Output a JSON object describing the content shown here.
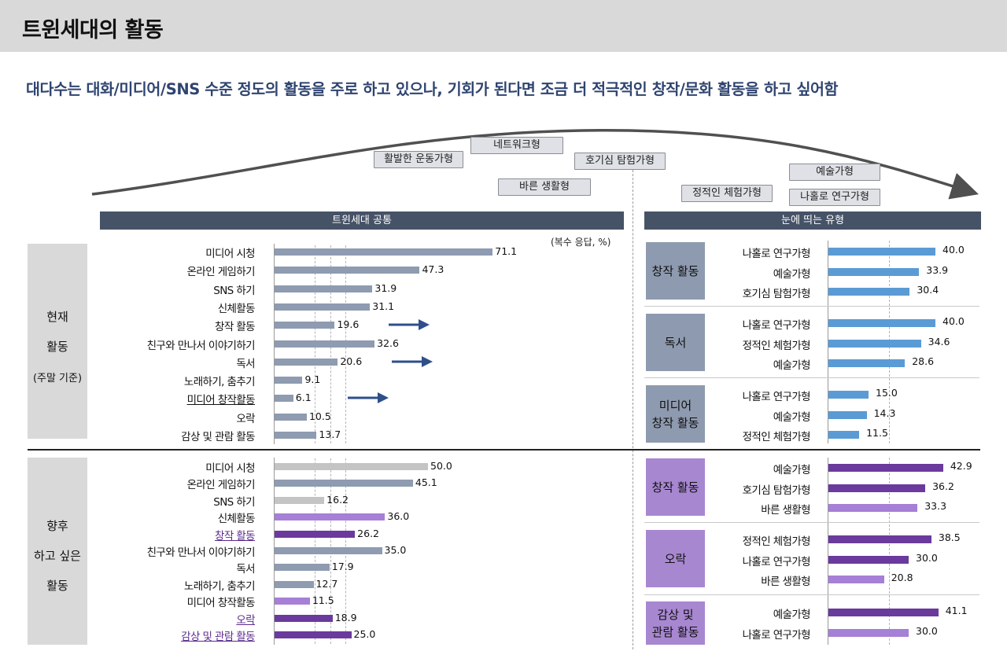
{
  "page": {
    "title": "트윈세대의 활동",
    "subtitle": "대다수는 대화/미디어/SNS 수준 정도의 활동을 주로 하고 있으나, 기회가 된다면 조금 더 적극적인 창작/문화 활동을 하고 싶어함"
  },
  "colors": {
    "current_bar": "#8e9bb0",
    "future_gray": "#c4c4c4",
    "future_purple_light": "#a67fd6",
    "future_purple_dark": "#6b3a9d",
    "right_blue": "#5b9bd5",
    "header_bg": "#465266"
  },
  "timeline": {
    "tags": [
      "활발한 운동가형",
      "네트워크형",
      "바른 생활형",
      "호기심 탐험가형",
      "정적인 체험가형",
      "예술가형",
      "나홀로 연구가형"
    ]
  },
  "left_section": {
    "header": "트윈세대 공통",
    "unit_note": "(복수 응답, %)"
  },
  "right_section": {
    "header": "눈에 띄는 유형"
  },
  "row_panels": {
    "current": {
      "line1": "현재",
      "line2": "활동",
      "line3": "(주말 기준)"
    },
    "future": {
      "line1": "향후",
      "line2": "하고 싶은",
      "line3": "활동"
    }
  },
  "chart_data": [
    {
      "type": "bar",
      "orientation": "horizontal",
      "group": "현재 활동 (주말 기준)",
      "categories": [
        "미디어 시청",
        "온라인 게임하기",
        "SNS 하기",
        "신체활동",
        "창작 활동",
        "친구와 만나서 이야기하기",
        "독서",
        "노래하기, 춤추기",
        "미디어 창작활동",
        "오락",
        "감상 및 관람 활동"
      ],
      "values": [
        71.1,
        47.3,
        31.9,
        31.1,
        19.6,
        32.6,
        20.6,
        9.1,
        6.1,
        10.5,
        13.7
      ],
      "value_labels": [
        "71.1",
        "47.3",
        "31.9",
        "31.1",
        "19.6",
        "32.6",
        "20.6",
        "9.1",
        "6.1",
        "10.5",
        "13.7"
      ],
      "arrows_on": [
        "창작 활동",
        "독서",
        "미디어 창작활동"
      ],
      "underlined": [
        "미디어 창작활동"
      ]
    },
    {
      "type": "bar",
      "orientation": "horizontal",
      "group": "향후 하고 싶은 활동",
      "categories": [
        "미디어 시청",
        "온라인 게임하기",
        "SNS 하기",
        "신체활동",
        "창작 활동",
        "친구와 만나서 이야기하기",
        "독서",
        "노래하기, 춤추기",
        "미디어 창작활동",
        "오락",
        "감상 및 관람 활동"
      ],
      "values": [
        50.0,
        45.1,
        16.2,
        36.0,
        26.2,
        35.0,
        17.9,
        12.7,
        11.5,
        18.9,
        25.0
      ],
      "value_labels": [
        "50.0",
        "45.1",
        "16.2",
        "36.0",
        "26.2",
        "35.0",
        "17.9",
        "12.7",
        "11.5",
        "18.9",
        "25.0"
      ],
      "bar_styles": [
        "future_gray",
        "current_bar",
        "future_gray",
        "future_purple_light",
        "future_purple_dark",
        "current_bar",
        "current_bar",
        "current_bar",
        "future_purple_light",
        "future_purple_dark",
        "future_purple_dark"
      ],
      "highlighted_labels": [
        "창작 활동",
        "오락",
        "감상 및 관람 활동"
      ]
    },
    {
      "type": "bar",
      "orientation": "horizontal",
      "group": "눈에 띄는 유형 - 현재",
      "panels": [
        {
          "title": "창작 활동",
          "categories": [
            "나홀로 연구가형",
            "예술가형",
            "호기심 탐험가형"
          ],
          "values": [
            40.0,
            33.9,
            30.4
          ],
          "value_labels": [
            "40.0",
            "33.9",
            "30.4"
          ]
        },
        {
          "title": "독서",
          "categories": [
            "나홀로 연구가형",
            "정적인 체험가형",
            "예술가형"
          ],
          "values": [
            40.0,
            34.6,
            28.6
          ],
          "value_labels": [
            "40.0",
            "34.6",
            "28.6"
          ]
        },
        {
          "title": "미디어 창작 활동",
          "categories": [
            "나홀로 연구가형",
            "예술가형",
            "정적인 체험가형"
          ],
          "values": [
            15.0,
            14.3,
            11.5
          ],
          "value_labels": [
            "15.0",
            "14.3",
            "11.5"
          ]
        }
      ]
    },
    {
      "type": "bar",
      "orientation": "horizontal",
      "group": "눈에 띄는 유형 - 향후",
      "panels": [
        {
          "title": "창작 활동",
          "categories": [
            "예술가형",
            "호기심 탐험가형",
            "바른 생활형"
          ],
          "values": [
            42.9,
            36.2,
            33.3
          ],
          "value_labels": [
            "42.9",
            "36.2",
            "33.3"
          ],
          "bar_styles": [
            "future_purple_dark",
            "future_purple_dark",
            "future_purple_light"
          ]
        },
        {
          "title": "오락",
          "categories": [
            "정적인 체험가형",
            "나홀로 연구가형",
            "바른 생활형"
          ],
          "values": [
            38.5,
            30.0,
            20.8
          ],
          "value_labels": [
            "38.5",
            "30.0",
            "20.8"
          ],
          "bar_styles": [
            "future_purple_dark",
            "future_purple_dark",
            "future_purple_light"
          ]
        },
        {
          "title": "감상 및 관람 활동",
          "categories": [
            "예술가형",
            "나홀로 연구가형"
          ],
          "values": [
            41.1,
            30.0
          ],
          "value_labels": [
            "41.1",
            "30.0"
          ],
          "bar_styles": [
            "future_purple_dark",
            "future_purple_light"
          ]
        }
      ]
    }
  ]
}
